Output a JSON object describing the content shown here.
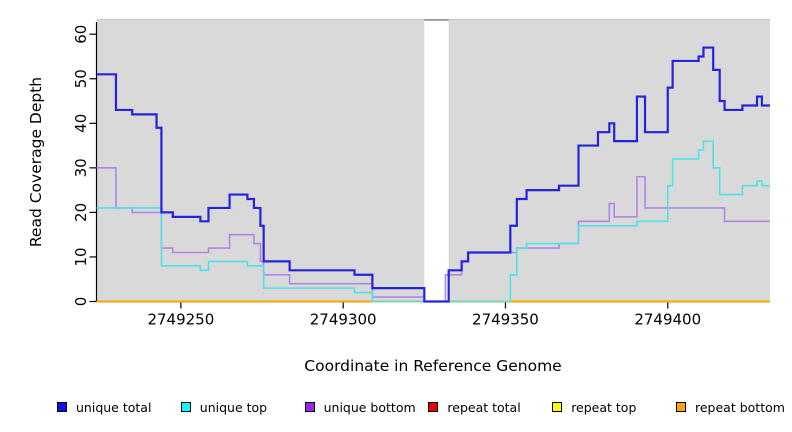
{
  "chart_data": {
    "type": "line",
    "subtype": "step-coverage-plot",
    "title": "",
    "xlabel": "Coordinate in Reference Genome",
    "ylabel": "Read Coverage Depth",
    "xlim": [
      2749224,
      2749431.5
    ],
    "ylim": [
      0,
      60
    ],
    "x_ticks": [
      2749250,
      2749300,
      2749350,
      2749400
    ],
    "y_ticks": [
      0,
      10,
      20,
      30,
      40,
      50,
      60
    ],
    "grid": false,
    "plot_background": "#d9d9d9",
    "gap_region": {
      "x0": 2749325,
      "x1": 2749332.5,
      "fill": "#ffffff",
      "top_edge_color": "#8a8a8a"
    },
    "box_top_color": "#c6c6c6",
    "axis_color": "#000000",
    "series": [
      {
        "name": "repeat total",
        "color": "#ee0000",
        "width": 1.5,
        "points": [
          [
            2749224,
            0
          ]
        ]
      },
      {
        "name": "repeat top",
        "color": "#ffff00",
        "width": 1.5,
        "points": [
          [
            2749224,
            0
          ]
        ]
      },
      {
        "name": "repeat bottom",
        "color": "#ffa500",
        "width": 2,
        "points": [
          [
            2749224,
            0
          ]
        ]
      },
      {
        "name": "unique bottom",
        "color": "#b286e8",
        "width": 1.6,
        "points": [
          [
            2749224,
            30
          ],
          [
            2749230,
            21
          ],
          [
            2749235,
            20
          ],
          [
            2749244,
            12
          ],
          [
            2749247.5,
            11
          ],
          [
            2749258.5,
            12
          ],
          [
            2749265,
            15
          ],
          [
            2749272.5,
            13
          ],
          [
            2749274.5,
            9
          ],
          [
            2749275.5,
            6
          ],
          [
            2749283.5,
            4
          ],
          [
            2749309,
            1
          ],
          [
            2749325,
            0
          ],
          [
            2749331.5,
            6
          ],
          [
            2749336.5,
            9
          ],
          [
            2749338.5,
            11
          ],
          [
            2749353.5,
            12
          ],
          [
            2749366.5,
            13
          ],
          [
            2749372.5,
            18
          ],
          [
            2749382,
            22
          ],
          [
            2749383.5,
            19
          ],
          [
            2749390.5,
            28
          ],
          [
            2749393,
            21
          ],
          [
            2749417.5,
            18
          ]
        ]
      },
      {
        "name": "unique top",
        "color": "#4fe2e8",
        "width": 1.6,
        "points": [
          [
            2749224,
            21
          ],
          [
            2749244,
            8
          ],
          [
            2749256,
            7
          ],
          [
            2749258.5,
            9
          ],
          [
            2749270.5,
            8
          ],
          [
            2749275.5,
            3
          ],
          [
            2749303.5,
            2
          ],
          [
            2749309,
            0
          ],
          [
            2749351.5,
            6
          ],
          [
            2749353.5,
            12
          ],
          [
            2749356.5,
            13
          ],
          [
            2749372.5,
            17
          ],
          [
            2749390.5,
            18
          ],
          [
            2749400,
            26
          ],
          [
            2749401.5,
            32
          ],
          [
            2749409.5,
            34
          ],
          [
            2749411,
            36
          ],
          [
            2749414,
            30
          ],
          [
            2749416,
            24
          ],
          [
            2749423,
            26
          ],
          [
            2749427.5,
            27
          ],
          [
            2749429,
            26
          ]
        ]
      },
      {
        "name": "unique total",
        "color": "#2424dd",
        "width": 2.2,
        "points": [
          [
            2749224,
            51
          ],
          [
            2749230,
            43
          ],
          [
            2749235,
            42
          ],
          [
            2749242.5,
            39
          ],
          [
            2749244,
            20
          ],
          [
            2749247.5,
            19
          ],
          [
            2749256,
            18
          ],
          [
            2749258.5,
            21
          ],
          [
            2749265,
            24
          ],
          [
            2749270.5,
            23
          ],
          [
            2749272.5,
            21
          ],
          [
            2749274.5,
            17
          ],
          [
            2749275.5,
            9
          ],
          [
            2749283.5,
            7
          ],
          [
            2749303.5,
            6
          ],
          [
            2749309,
            3
          ],
          [
            2749325,
            0
          ],
          [
            2749332.5,
            7
          ],
          [
            2749336.5,
            9
          ],
          [
            2749338.5,
            11
          ],
          [
            2749351.5,
            17
          ],
          [
            2749353.5,
            23
          ],
          [
            2749356.5,
            25
          ],
          [
            2749366.5,
            26
          ],
          [
            2749372.5,
            35
          ],
          [
            2749378.5,
            38
          ],
          [
            2749382,
            40
          ],
          [
            2749383.5,
            36
          ],
          [
            2749390.5,
            46
          ],
          [
            2749393,
            38
          ],
          [
            2749400,
            48
          ],
          [
            2749401.5,
            54
          ],
          [
            2749409.5,
            55
          ],
          [
            2749411,
            57
          ],
          [
            2749414,
            52
          ],
          [
            2749416,
            45
          ],
          [
            2749417.5,
            43
          ],
          [
            2749423,
            44
          ],
          [
            2749427.5,
            46
          ],
          [
            2749429,
            44
          ]
        ]
      }
    ],
    "legend": {
      "position": "bottom",
      "items": [
        {
          "label": "unique total",
          "fill": "#1010ee"
        },
        {
          "label": "unique top",
          "fill": "#00ffff"
        },
        {
          "label": "unique bottom",
          "fill": "#a020f0"
        },
        {
          "label": "repeat total",
          "fill": "#ee0000"
        },
        {
          "label": "repeat top",
          "fill": "#ffff00"
        },
        {
          "label": "repeat bottom",
          "fill": "#ffa500"
        }
      ]
    }
  }
}
